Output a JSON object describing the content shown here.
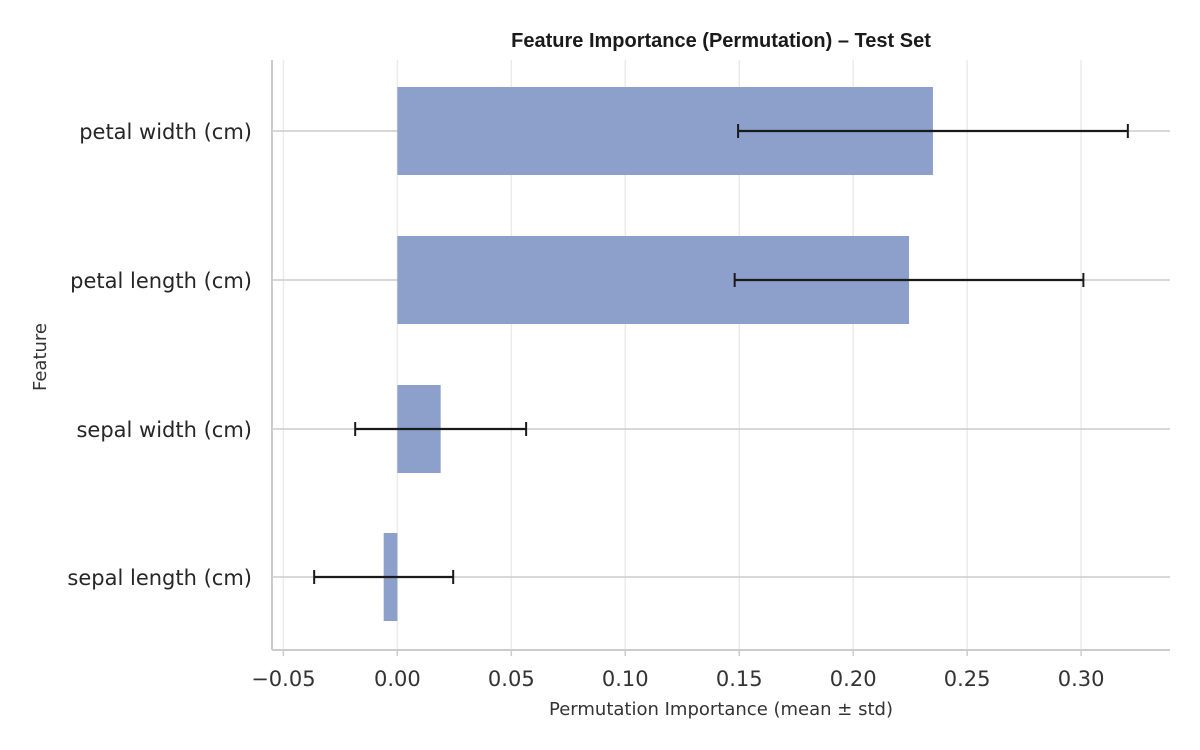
{
  "chart_data": {
    "type": "bar",
    "orientation": "horizontal",
    "title": "Feature Importance (Permutation) – Test Set",
    "xlabel": "Permutation Importance (mean ± std)",
    "ylabel": "Feature",
    "categories": [
      "petal width (cm)",
      "petal length (cm)",
      "sepal width (cm)",
      "sepal length (cm)"
    ],
    "values": [
      0.235,
      0.2245,
      0.019,
      -0.006
    ],
    "errors": [
      0.0855,
      0.0765,
      0.0375,
      0.0305
    ],
    "xlim": [
      -0.055,
      0.339
    ],
    "xticks": [
      -0.05,
      0.0,
      0.05,
      0.1,
      0.15,
      0.2,
      0.25,
      0.3
    ],
    "xtick_labels": [
      "−0.05",
      "0.00",
      "0.05",
      "0.10",
      "0.15",
      "0.20",
      "0.25",
      "0.30"
    ],
    "grid": true,
    "bar_color": "#8da0cb",
    "error_color": "#1a1a1a"
  }
}
